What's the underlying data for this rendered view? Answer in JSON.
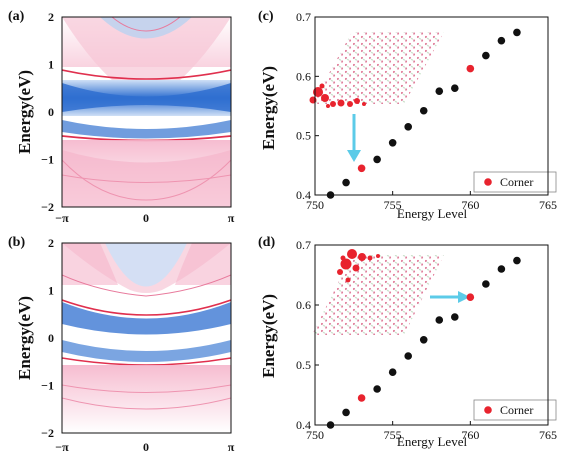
{
  "panels": {
    "a": {
      "label": "(a)"
    },
    "b": {
      "label": "(b)"
    },
    "c": {
      "label": "(c)"
    },
    "d": {
      "label": "(d)"
    }
  },
  "band_axes": {
    "ylabel": "Energy(eV)",
    "yticks": [
      "2",
      "1",
      "0",
      "−1",
      "−2"
    ],
    "xticks": [
      "−π",
      "0",
      "π"
    ],
    "ylim": [
      -2,
      2
    ]
  },
  "colors": {
    "bulk_blue": "#2f6fd0",
    "pink": "#f29bb8",
    "red_line": "#e0304e",
    "corner_red": "#e8232e",
    "black_dot": "#111111",
    "arrow": "#5ccbe8"
  },
  "chart_data": [
    {
      "type": "scatter",
      "panel": "c",
      "xlabel": "Energy Level",
      "ylabel": "Energy(eV)",
      "xlim": [
        750,
        765
      ],
      "ylim": [
        0.4,
        0.7
      ],
      "xticks": [
        "750",
        "755",
        "760",
        "765"
      ],
      "yticks": [
        "0.4",
        "0.5",
        "0.6",
        "0.7"
      ],
      "legend": {
        "label": "Corner",
        "position": "bottom-right"
      },
      "series": [
        {
          "role": "bulk",
          "x": [
            751,
            752,
            754,
            755,
            756,
            757,
            758,
            759,
            761,
            762,
            763
          ],
          "y": [
            0.4,
            0.421,
            0.46,
            0.488,
            0.515,
            0.542,
            0.575,
            0.58,
            0.635,
            0.66,
            0.674
          ]
        },
        {
          "name": "Corner",
          "x": [
            753,
            760
          ],
          "y": [
            0.445,
            0.613
          ]
        }
      ]
    },
    {
      "type": "scatter",
      "panel": "d",
      "xlabel": "Energy Level",
      "ylabel": "Energy(eV)",
      "xlim": [
        750,
        765
      ],
      "ylim": [
        0.4,
        0.7
      ],
      "xticks": [
        "750",
        "755",
        "760",
        "765"
      ],
      "yticks": [
        "0.4",
        "0.5",
        "0.6",
        "0.7"
      ],
      "legend": {
        "label": "Corner",
        "position": "bottom-right"
      },
      "series": [
        {
          "role": "bulk",
          "x": [
            751,
            752,
            754,
            755,
            756,
            757,
            758,
            759,
            761,
            762,
            763
          ],
          "y": [
            0.4,
            0.421,
            0.46,
            0.488,
            0.515,
            0.542,
            0.575,
            0.58,
            0.635,
            0.66,
            0.674
          ]
        },
        {
          "name": "Corner",
          "x": [
            753,
            760
          ],
          "y": [
            0.445,
            0.613
          ]
        }
      ]
    }
  ]
}
